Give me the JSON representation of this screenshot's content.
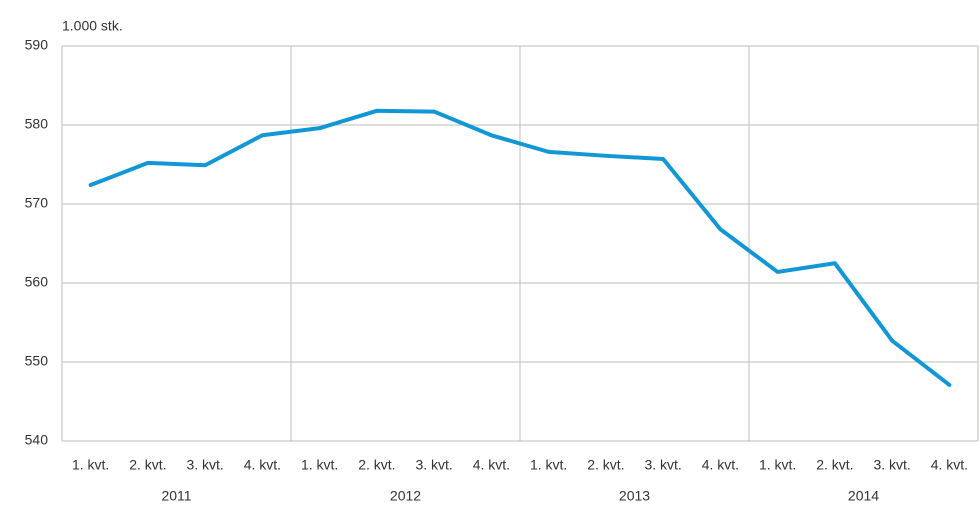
{
  "chart_data": {
    "type": "line",
    "unit_label": "1.000 stk.",
    "categories": [
      "1. kvt.",
      "2. kvt.",
      "3. kvt.",
      "4. kvt.",
      "1. kvt.",
      "2. kvt.",
      "3. kvt.",
      "4. kvt.",
      "1. kvt.",
      "2. kvt.",
      "3. kvt.",
      "4. kvt.",
      "1. kvt.",
      "2. kvt.",
      "3. kvt.",
      "4. kvt."
    ],
    "groups": [
      {
        "label": "2011",
        "span": 4
      },
      {
        "label": "2012",
        "span": 4
      },
      {
        "label": "2013",
        "span": 4
      },
      {
        "label": "2014",
        "span": 4
      }
    ],
    "values": [
      572.4,
      575.2,
      574.9,
      578.7,
      579.6,
      581.8,
      581.7,
      578.7,
      576.6,
      576.1,
      575.7,
      566.8,
      561.4,
      562.5,
      552.7,
      547.1
    ],
    "color": "#1197d6",
    "ylim": [
      540,
      590
    ],
    "yticks": [
      540,
      550,
      560,
      570,
      580,
      590
    ],
    "grid": true
  }
}
